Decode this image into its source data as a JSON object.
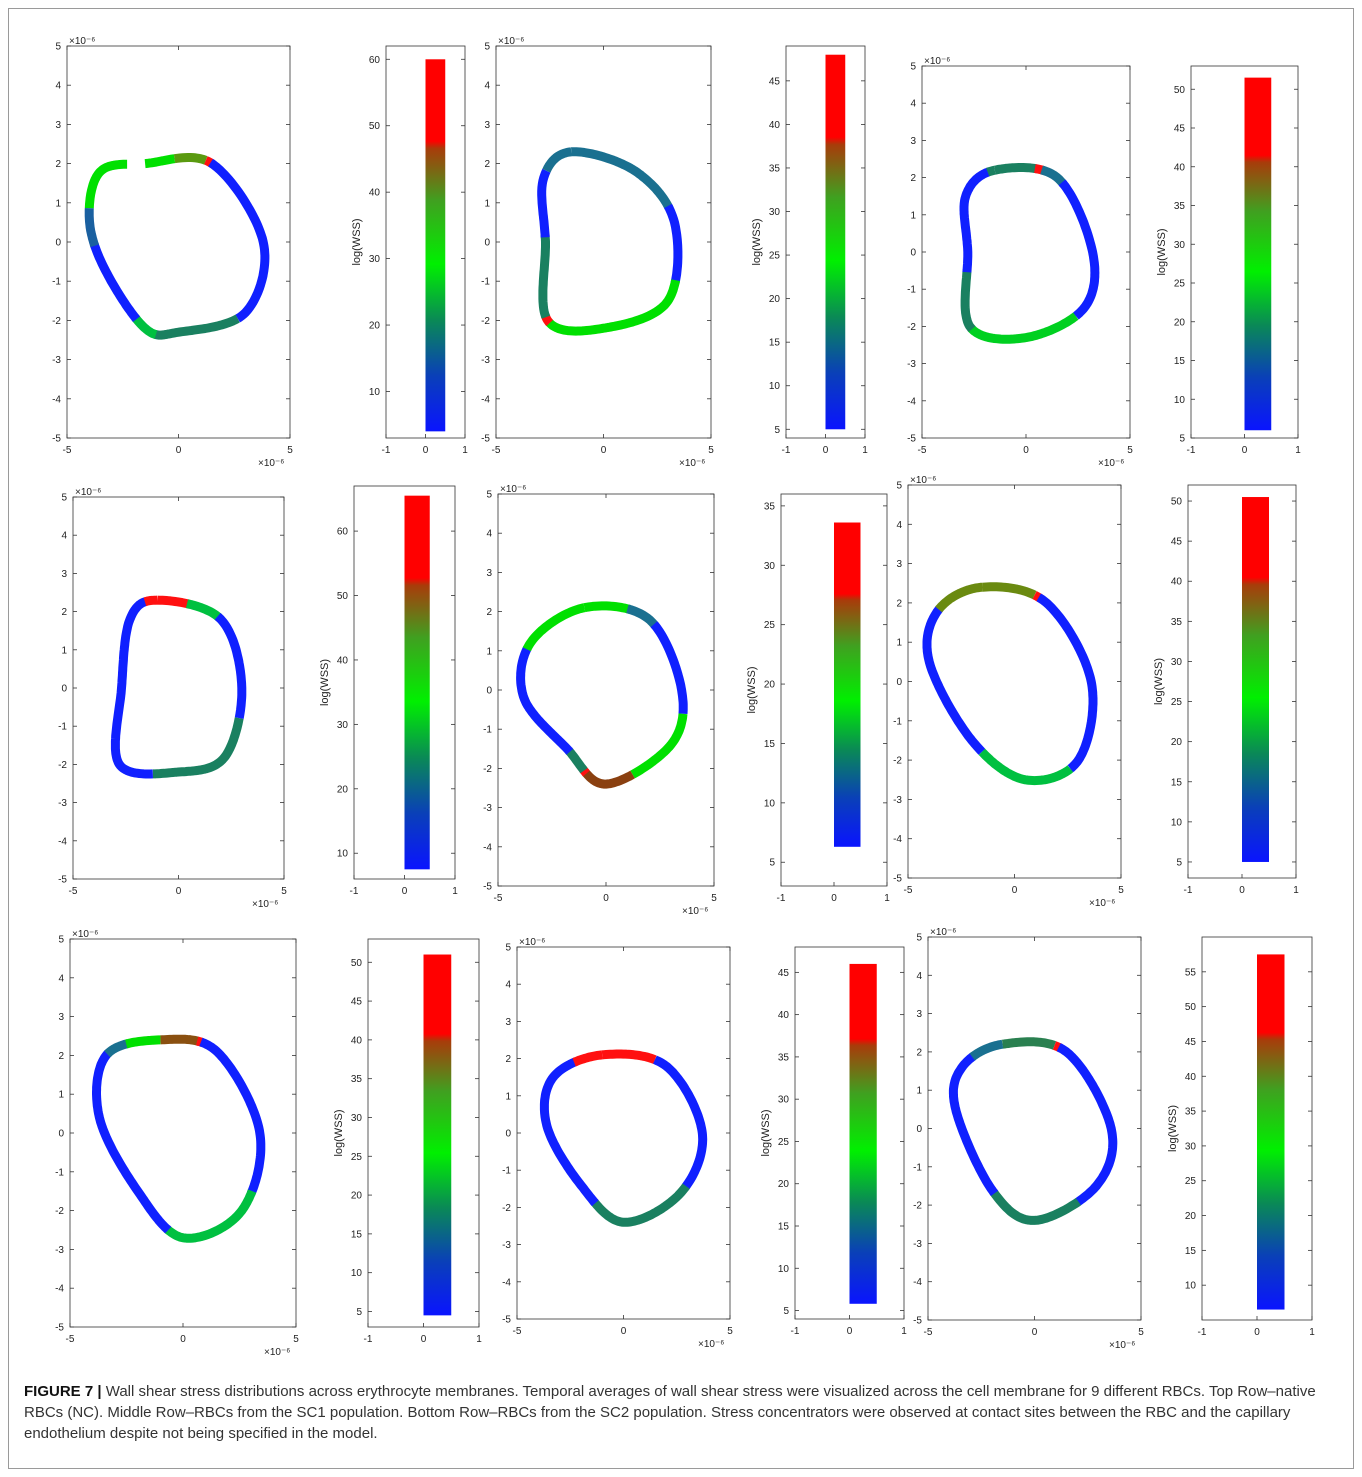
{
  "figure": {
    "label": "FIGURE 7 |",
    "caption": "Wall shear stress distributions across erythrocyte membranes. Temporal averages of wall shear stress were visualized across the cell membrane for 9 different RBCs. Top Row–native RBCs (NC). Middle Row–RBCs from the SC1 population. Bottom Row–RBCs from the SC2 population. Stress concentrators were observed at contact sites between the RBC and the capillary endothelium despite not being specified in the model."
  },
  "chart_data": [
    {
      "type": "membrane-shape",
      "row": "Top",
      "cell": 1,
      "x_ticks": [
        "-5",
        "0",
        "5"
      ],
      "y_ticks": [
        "5",
        "4",
        "3",
        "2",
        "1",
        "0",
        "-1",
        "-2",
        "-3",
        "-4",
        "-5"
      ],
      "axis_exponent": "×10⁻⁶",
      "xlim": [
        -5,
        5
      ],
      "ylim": [
        -5,
        5
      ],
      "colorbar": {
        "ylabel": "log(WSS)",
        "range": [
          4,
          60
        ],
        "ylim": [
          3,
          62
        ],
        "ticks": [
          10,
          20,
          30,
          40,
          50,
          60
        ],
        "x_ticks": [
          "-1",
          "0",
          "1"
        ]
      }
    },
    {
      "type": "membrane-shape",
      "row": "Top",
      "cell": 2,
      "x_ticks": [
        "-5",
        "0",
        "5"
      ],
      "y_ticks": [
        "5",
        "4",
        "3",
        "2",
        "1",
        "0",
        "-1",
        "-2",
        "-3",
        "-4",
        "-5"
      ],
      "axis_exponent": "×10⁻⁶",
      "xlim": [
        -5,
        5
      ],
      "ylim": [
        -5,
        5
      ],
      "colorbar": {
        "ylabel": "log(WSS)",
        "range": [
          5,
          48
        ],
        "ylim": [
          4,
          49
        ],
        "ticks": [
          5,
          10,
          15,
          20,
          25,
          30,
          35,
          40,
          45
        ],
        "x_ticks": [
          "-1",
          "0",
          "1"
        ]
      }
    },
    {
      "type": "membrane-shape",
      "row": "Top",
      "cell": 3,
      "x_ticks": [
        "-5",
        "0",
        "5"
      ],
      "y_ticks": [
        "5",
        "4",
        "3",
        "2",
        "1",
        "0",
        "-1",
        "-2",
        "-3",
        "-4",
        "-5"
      ],
      "axis_exponent": "×10⁻⁶",
      "xlim": [
        -5,
        5
      ],
      "ylim": [
        -5,
        5
      ],
      "colorbar": {
        "ylabel": "log(WSS)",
        "range": [
          6,
          51.5
        ],
        "ylim": [
          5,
          53
        ],
        "ticks": [
          5,
          10,
          15,
          20,
          25,
          30,
          35,
          40,
          45,
          50
        ],
        "x_ticks": [
          "-1",
          "0",
          "1"
        ]
      }
    },
    {
      "type": "membrane-shape",
      "row": "Middle",
      "cell": 4,
      "x_ticks": [
        "-5",
        "0",
        "5"
      ],
      "y_ticks": [
        "5",
        "4",
        "3",
        "2",
        "1",
        "0",
        "-1",
        "-2",
        "-3",
        "-4",
        "-5"
      ],
      "axis_exponent": "×10⁻⁶",
      "xlim": [
        -5,
        5
      ],
      "ylim": [
        -5,
        5
      ],
      "colorbar": {
        "ylabel": "log(WSS)",
        "range": [
          7.5,
          65.5
        ],
        "ylim": [
          6,
          67
        ],
        "ticks": [
          10,
          20,
          30,
          40,
          50,
          60
        ],
        "x_ticks": [
          "-1",
          "0",
          "1"
        ]
      }
    },
    {
      "type": "membrane-shape",
      "row": "Middle",
      "cell": 5,
      "x_ticks": [
        "-5",
        "0",
        "5"
      ],
      "y_ticks": [
        "5",
        "4",
        "3",
        "2",
        "1",
        "0",
        "-1",
        "-2",
        "-3",
        "-4",
        "-5"
      ],
      "axis_exponent": "×10⁻⁶",
      "xlim": [
        -5,
        5
      ],
      "ylim": [
        -5,
        5
      ],
      "colorbar": {
        "ylabel": "log(WSS)",
        "range": [
          6.3,
          33.6
        ],
        "ylim": [
          3,
          36
        ],
        "ticks": [
          5,
          10,
          15,
          20,
          25,
          30,
          35
        ],
        "x_ticks": [
          "-1",
          "0",
          "1"
        ]
      }
    },
    {
      "type": "membrane-shape",
      "row": "Middle",
      "cell": 6,
      "x_ticks": [
        "-5",
        "0",
        "5"
      ],
      "y_ticks": [
        "5",
        "4",
        "3",
        "2",
        "1",
        "0",
        "-1",
        "-2",
        "-3",
        "-4",
        "-5"
      ],
      "axis_exponent": "×10⁻⁶",
      "xlim": [
        -5,
        5
      ],
      "ylim": [
        -5,
        5
      ],
      "colorbar": {
        "ylabel": "log(WSS)",
        "range": [
          5,
          50.5
        ],
        "ylim": [
          3,
          52
        ],
        "ticks": [
          5,
          10,
          15,
          20,
          25,
          30,
          35,
          40,
          45,
          50
        ],
        "x_ticks": [
          "-1",
          "0",
          "1"
        ]
      }
    },
    {
      "type": "membrane-shape",
      "row": "Bottom",
      "cell": 7,
      "x_ticks": [
        "-5",
        "0",
        "5"
      ],
      "y_ticks": [
        "5",
        "4",
        "3",
        "2",
        "1",
        "0",
        "-1",
        "-2",
        "-3",
        "-4",
        "-5"
      ],
      "axis_exponent": "×10⁻⁶",
      "xlim": [
        -5,
        5
      ],
      "ylim": [
        -5,
        5
      ],
      "colorbar": {
        "ylabel": "log(WSS)",
        "range": [
          4.5,
          51
        ],
        "ylim": [
          3,
          53
        ],
        "ticks": [
          5,
          10,
          15,
          20,
          25,
          30,
          35,
          40,
          45,
          50
        ],
        "x_ticks": [
          "-1",
          "0",
          "1"
        ]
      }
    },
    {
      "type": "membrane-shape",
      "row": "Bottom",
      "cell": 8,
      "x_ticks": [
        "-5",
        "0",
        "5"
      ],
      "y_ticks": [
        "5",
        "4",
        "3",
        "2",
        "1",
        "0",
        "-1",
        "-2",
        "-3",
        "-4",
        "-5"
      ],
      "axis_exponent": "×10⁻⁶",
      "xlim": [
        -5,
        5
      ],
      "ylim": [
        -5,
        5
      ],
      "colorbar": {
        "ylabel": "log(WSS)",
        "range": [
          5.8,
          46
        ],
        "ylim": [
          4,
          48
        ],
        "ticks": [
          5,
          10,
          15,
          20,
          25,
          30,
          35,
          40,
          45
        ],
        "x_ticks": [
          "-1",
          "0",
          "1"
        ]
      }
    },
    {
      "type": "membrane-shape",
      "row": "Bottom",
      "cell": 9,
      "x_ticks": [
        "-5",
        "0",
        "5"
      ],
      "y_ticks": [
        "5",
        "4",
        "3",
        "2",
        "1",
        "0",
        "-1",
        "-2",
        "-3",
        "-4",
        "-5"
      ],
      "axis_exponent": "×10⁻⁶",
      "xlim": [
        -5,
        5
      ],
      "ylim": [
        -5,
        5
      ],
      "colorbar": {
        "ylabel": "log(WSS)",
        "range": [
          6.5,
          57.5
        ],
        "ylim": [
          5,
          60
        ],
        "ticks": [
          10,
          15,
          20,
          25,
          30,
          35,
          40,
          45,
          50,
          55
        ],
        "x_ticks": [
          "-1",
          "0",
          "1"
        ]
      }
    }
  ]
}
